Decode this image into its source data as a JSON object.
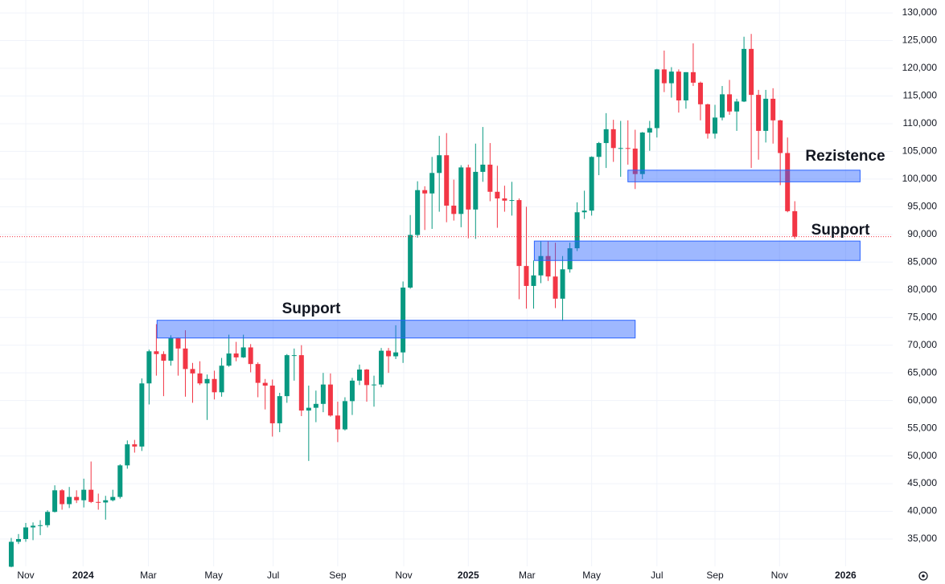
{
  "chart_data": {
    "type": "candlestick",
    "up_color": "#089981",
    "down_color": "#f23645",
    "zone_color": "#2962ff",
    "grid": true,
    "open": [
      30000,
      34500,
      35000,
      37100,
      37400,
      37500,
      39900,
      43800,
      41300,
      42600,
      42000,
      43900,
      41700,
      41600,
      42000,
      42600,
      48300,
      52100,
      51700,
      63100,
      68900,
      68400,
      67200,
      71300,
      69400,
      65700,
      64900,
      63100,
      63900,
      61500,
      66300,
      68500,
      67800,
      69600,
      66600,
      63200,
      62700,
      55900,
      60800,
      68200,
      68200,
      58200,
      58700,
      59400,
      62900,
      57300,
      54800,
      59900,
      63600,
      65600,
      62800,
      62900,
      69000,
      68000,
      68700,
      80400,
      89900,
      98000,
      97400,
      101100,
      104300,
      95200,
      93700,
      102100,
      94500,
      101300,
      102600,
      97700,
      96500,
      96100,
      96200,
      84300,
      80700,
      82600,
      86100,
      82400,
      78400,
      83700,
      87500,
      94000,
      94300,
      104000,
      106500,
      109000,
      105600,
      105600,
      105500,
      100900,
      108400,
      109200,
      119800,
      117300,
      119400,
      114200,
      119300,
      117400,
      113500,
      108200,
      111100,
      115300,
      112200,
      114000,
      123500,
      115200,
      108700,
      114500,
      110600,
      104700,
      94200
    ],
    "high": [
      35200,
      35900,
      37900,
      38000,
      38400,
      40200,
      44700,
      44000,
      44400,
      43800,
      45900,
      49000,
      43200,
      42800,
      43900,
      48500,
      52800,
      52900,
      64000,
      69200,
      73800,
      68900,
      71800,
      71400,
      72700,
      66800,
      67100,
      64700,
      65400,
      67700,
      71900,
      70600,
      71900,
      70200,
      66900,
      63900,
      63800,
      61400,
      68400,
      69400,
      70000,
      62700,
      61800,
      65000,
      64900,
      59800,
      60600,
      64100,
      66500,
      65700,
      64500,
      69500,
      69500,
      73600,
      81500,
      93500,
      99600,
      98700,
      104000,
      107800,
      108300,
      99900,
      102500,
      102600,
      106400,
      109400,
      106500,
      102400,
      98800,
      99500,
      96500,
      95000,
      85300,
      88800,
      88800,
      88500,
      86100,
      88500,
      95800,
      97900,
      104100,
      106700,
      111900,
      110700,
      110500,
      110600,
      108900,
      108500,
      110500,
      119900,
      123200,
      120200,
      119800,
      119300,
      124500,
      117600,
      113600,
      113400,
      116800,
      117900,
      114500,
      125700,
      126200,
      116100,
      116100,
      116400,
      110700,
      107500,
      96000
    ],
    "low": [
      29900,
      34100,
      34500,
      34800,
      35700,
      37100,
      39800,
      40300,
      40600,
      41500,
      40700,
      41500,
      40300,
      38500,
      41800,
      42300,
      47700,
      50600,
      50900,
      59300,
      64500,
      60800,
      66300,
      64500,
      60700,
      59600,
      62800,
      56500,
      60200,
      60700,
      66100,
      67100,
      67700,
      65100,
      60600,
      58400,
      53500,
      54300,
      59600,
      63600,
      57200,
      49100,
      56100,
      57900,
      57100,
      52500,
      54600,
      57400,
      62800,
      59800,
      58900,
      62400,
      65000,
      67500,
      66800,
      80200,
      89400,
      90800,
      91000,
      94100,
      92200,
      92500,
      91300,
      89300,
      89200,
      99500,
      96000,
      91200,
      94100,
      93400,
      78300,
      76600,
      76600,
      81200,
      81600,
      76700,
      74400,
      83100,
      87000,
      92800,
      93400,
      100700,
      102000,
      103100,
      100400,
      102600,
      98200,
      100000,
      105100,
      107500,
      115700,
      114700,
      112000,
      112700,
      116800,
      110600,
      107300,
      107300,
      110600,
      111600,
      108700,
      113900,
      102000,
      103500,
      106600,
      106400,
      98900,
      94000,
      89200
    ],
    "close": [
      34500,
      35000,
      37100,
      37400,
      37500,
      39900,
      43800,
      41300,
      42600,
      42000,
      43900,
      41700,
      41600,
      42000,
      42600,
      48300,
      52100,
      51700,
      63100,
      68900,
      68400,
      67200,
      71300,
      69400,
      65700,
      64900,
      63100,
      63900,
      61500,
      66300,
      68500,
      67800,
      69600,
      66600,
      63200,
      62700,
      55900,
      60800,
      68200,
      68200,
      58200,
      58700,
      59400,
      62900,
      57300,
      54800,
      59900,
      63600,
      65600,
      62800,
      62900,
      69000,
      68000,
      68700,
      80400,
      89900,
      98000,
      97400,
      101100,
      104300,
      95200,
      93700,
      102100,
      94500,
      101300,
      102600,
      97700,
      96500,
      96100,
      96200,
      84300,
      80700,
      82600,
      86100,
      82400,
      78400,
      83700,
      87500,
      94000,
      94300,
      104000,
      106500,
      109000,
      105600,
      105600,
      105500,
      100900,
      108400,
      109200,
      119800,
      117300,
      119400,
      114200,
      119300,
      117400,
      113500,
      108200,
      111100,
      115300,
      112200,
      114000,
      123500,
      115200,
      108700,
      114500,
      110600,
      104700,
      94200,
      89600
    ],
    "xlim": [
      -1.55,
      121.5
    ],
    "xticks": [
      {
        "value": 2.0,
        "label": "Nov"
      },
      {
        "value": 9.9,
        "label": "2024"
      },
      {
        "value": 18.9,
        "label": "Mar"
      },
      {
        "value": 27.9,
        "label": "May"
      },
      {
        "value": 36.1,
        "label": "Jul"
      },
      {
        "value": 45.0,
        "label": "Sep"
      },
      {
        "value": 54.1,
        "label": "Nov"
      },
      {
        "value": 63.0,
        "label": "2025"
      },
      {
        "value": 71.1,
        "label": "Mar"
      },
      {
        "value": 80.0,
        "label": "May"
      },
      {
        "value": 89.0,
        "label": "Jul"
      },
      {
        "value": 97.0,
        "label": "Sep"
      },
      {
        "value": 105.9,
        "label": "Nov"
      },
      {
        "value": 115.0,
        "label": "2026"
      }
    ],
    "ylim": [
      30070,
      132330
    ],
    "yticks": [
      {
        "value": 35000,
        "label": "35,000"
      },
      {
        "value": 40000,
        "label": "40,000"
      },
      {
        "value": 45000,
        "label": "45,000"
      },
      {
        "value": 50000,
        "label": "50,000"
      },
      {
        "value": 55000,
        "label": "55,000"
      },
      {
        "value": 60000,
        "label": "60,000"
      },
      {
        "value": 65000,
        "label": "65,000"
      },
      {
        "value": 70000,
        "label": "70,000"
      },
      {
        "value": 75000,
        "label": "75,000"
      },
      {
        "value": 80000,
        "label": "80,000"
      },
      {
        "value": 85000,
        "label": "85,000"
      },
      {
        "value": 90000,
        "label": "90,000"
      },
      {
        "value": 95000,
        "label": "95,000"
      },
      {
        "value": 100000,
        "label": "100,000"
      },
      {
        "value": 105000,
        "label": "105,000"
      },
      {
        "value": 110000,
        "label": "110,000"
      },
      {
        "value": 115000,
        "label": "115,000"
      },
      {
        "value": 120000,
        "label": "120,000"
      },
      {
        "value": 125000,
        "label": "125,000"
      },
      {
        "value": 130000,
        "label": "130,000"
      }
    ],
    "zones": [
      {
        "label": "Support",
        "x": [
          20.1,
          86.0
        ],
        "y": [
          71300,
          74500
        ]
      },
      {
        "label": "Rezistence",
        "x": [
          85.0,
          117.0
        ],
        "y": [
          99500,
          101600
        ]
      },
      {
        "label": "Support",
        "x": [
          72.1,
          117.0
        ],
        "y": [
          85300,
          88800
        ]
      }
    ]
  }
}
